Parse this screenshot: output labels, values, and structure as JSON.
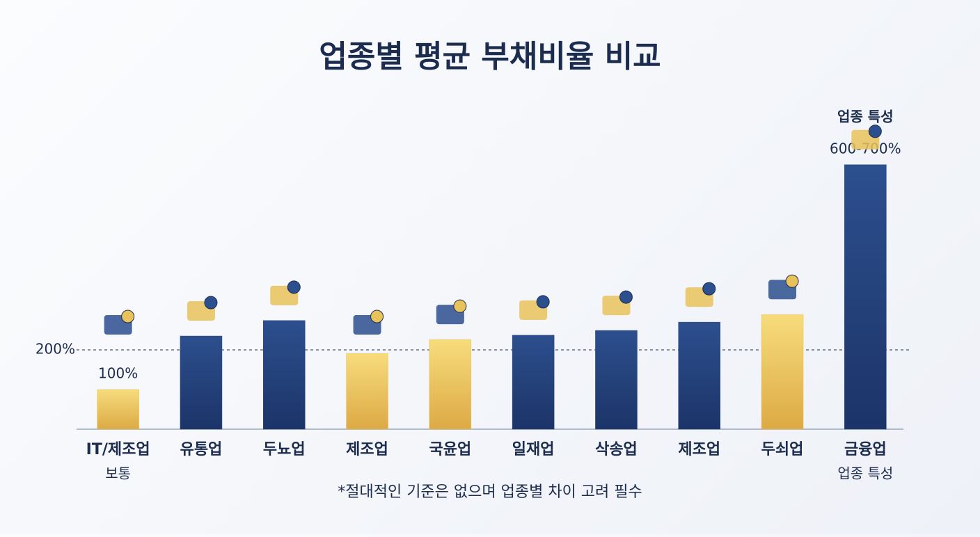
{
  "chart_data": {
    "type": "bar",
    "title": "업종별 평균 부채비율 비교",
    "categories": [
      "IT/제조업",
      "유통업",
      "두뇨업",
      "제조업",
      "국윤업",
      "일재업",
      "삭송업",
      "제조업",
      "두쇠업",
      "금융업"
    ],
    "subcategories": [
      "보통",
      null,
      null,
      null,
      null,
      null,
      null,
      null,
      null,
      "업종 특성"
    ],
    "values": [
      100,
      235,
      274,
      191,
      226,
      237,
      249,
      270,
      289,
      667
    ],
    "value_labels": [
      "100%",
      null,
      null,
      null,
      null,
      null,
      null,
      null,
      null,
      "600-700%"
    ],
    "colors": [
      "#e8c25a",
      "#26457f",
      "#26457f",
      "#e8c25a",
      "#e8c25a",
      "#26457f",
      "#26457f",
      "#26457f",
      "#e8c25a",
      "#26457f"
    ],
    "ylim": [
      0,
      700
    ],
    "reference": {
      "value": 200,
      "label": "200%"
    },
    "top_note": "업종 특성",
    "footnote": "*절대적인 기준은 없으며 업종별 차이 고려 필수"
  }
}
